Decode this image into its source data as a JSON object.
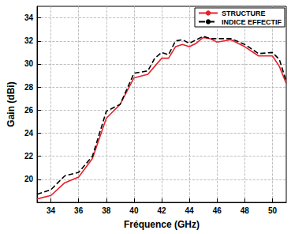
{
  "chart_data": {
    "type": "line",
    "x_label": "Fréquence (GHz)",
    "y_label": "Gain (dBi)",
    "x": [
      33,
      34,
      35,
      36,
      37,
      38,
      39,
      40,
      41,
      41.5,
      42,
      42.5,
      43,
      43.5,
      44,
      44.5,
      45,
      45.5,
      46,
      47,
      48,
      49,
      50,
      50.5,
      51
    ],
    "series": [
      {
        "name": "STRUCTURE",
        "color": "#e8202a",
        "line_style": "solid",
        "values": [
          18.3,
          18.6,
          19.7,
          20.2,
          21.8,
          25.3,
          26.5,
          28.8,
          29.1,
          29.8,
          30.5,
          30.5,
          31.5,
          31.7,
          31.5,
          31.8,
          32.3,
          32.2,
          31.9,
          32.1,
          31.5,
          30.7,
          30.7,
          29.8,
          28.3
        ]
      },
      {
        "name": "INDICE EFFECTIF",
        "color": "#000000",
        "line_style": "dashed",
        "values": [
          18.7,
          19.1,
          20.3,
          20.6,
          22.0,
          25.9,
          26.5,
          29.2,
          29.4,
          30.5,
          31.0,
          30.8,
          32.0,
          32.1,
          31.8,
          32.1,
          32.4,
          32.2,
          32.2,
          32.2,
          31.7,
          30.9,
          31.0,
          30.4,
          28.5
        ]
      }
    ],
    "xlim": [
      33,
      51
    ],
    "xticks": [
      34,
      36,
      38,
      40,
      42,
      44,
      46,
      48,
      50
    ],
    "ylim": [
      18,
      35
    ],
    "yticks": [
      20,
      22,
      24,
      26,
      28,
      30,
      32,
      34
    ],
    "grid": true,
    "legend": "top-right"
  }
}
